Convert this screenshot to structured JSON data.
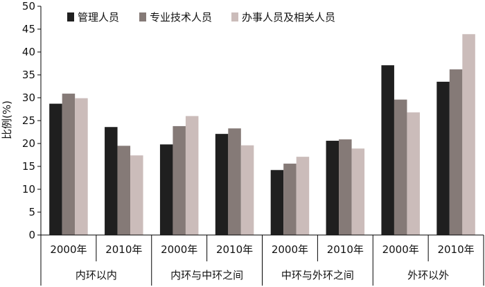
{
  "chart_data": {
    "type": "bar",
    "ylabel": "比例(%)",
    "ylim": [
      0,
      50
    ],
    "yticks": [
      0,
      5,
      10,
      15,
      20,
      25,
      30,
      35,
      40,
      45,
      50
    ],
    "grid": false,
    "legend_position": "top-left",
    "groups": [
      {
        "label": "内环以内",
        "years": [
          "2000年",
          "2010年"
        ]
      },
      {
        "label": "内环与中环之间",
        "years": [
          "2000年",
          "2010年"
        ]
      },
      {
        "label": "中环与外环之间",
        "years": [
          "2000年",
          "2010年"
        ]
      },
      {
        "label": "外环以外",
        "years": [
          "2000年",
          "2010年"
        ]
      }
    ],
    "series": [
      {
        "name": "管理人员",
        "color": "#1f1f1f",
        "values": [
          28.7,
          23.6,
          19.8,
          22.1,
          14.2,
          20.6,
          37.1,
          33.5
        ]
      },
      {
        "name": "专业技术人员",
        "color": "#857a77",
        "values": [
          30.9,
          19.5,
          23.8,
          23.3,
          15.6,
          20.9,
          29.6,
          36.2
        ]
      },
      {
        "name": "办事人员及相关人员",
        "color": "#cbbcba",
        "values": [
          29.9,
          17.4,
          26.0,
          19.6,
          17.1,
          18.9,
          26.8,
          43.9
        ]
      }
    ]
  }
}
